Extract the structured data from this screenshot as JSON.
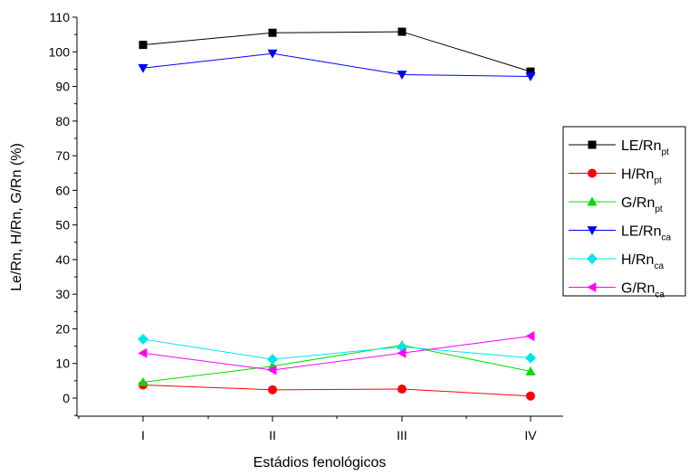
{
  "chart_data": {
    "type": "line",
    "xlabel": "Estádios fenológicos",
    "ylabel": "Le/Rn, H/Rn, G/Rn (%)",
    "categories": [
      "I",
      "II",
      "III",
      "IV"
    ],
    "ylim": [
      -5,
      110
    ],
    "yticks": [
      0,
      10,
      20,
      30,
      40,
      50,
      60,
      70,
      80,
      90,
      100,
      110
    ],
    "grid": false,
    "legend_position": "right",
    "series": [
      {
        "name": "LE/Rn",
        "sub": "pt",
        "color": "#000000",
        "marker": "square",
        "values": [
          102.0,
          105.5,
          105.8,
          94.3
        ]
      },
      {
        "name": "H/Rn",
        "sub": "pt",
        "color": "#ff0000",
        "marker": "circle",
        "values": [
          3.8,
          2.4,
          2.6,
          0.6
        ]
      },
      {
        "name": "G/Rn",
        "sub": "pt",
        "color": "#00dd00",
        "marker": "triangle-up",
        "values": [
          4.6,
          9.2,
          15.3,
          7.7
        ]
      },
      {
        "name": "LE/Rn",
        "sub": "ca",
        "color": "#0000ff",
        "marker": "triangle-down",
        "values": [
          95.3,
          99.5,
          93.4,
          92.9
        ]
      },
      {
        "name": "H/Rn",
        "sub": "ca",
        "color": "#00e5ee",
        "marker": "diamond",
        "values": [
          17.0,
          11.2,
          14.8,
          11.6
        ]
      },
      {
        "name": "G/Rn",
        "sub": "ca",
        "color": "#ff00ff",
        "marker": "triangle-left",
        "values": [
          13.0,
          8.1,
          13.0,
          17.9
        ]
      }
    ]
  }
}
